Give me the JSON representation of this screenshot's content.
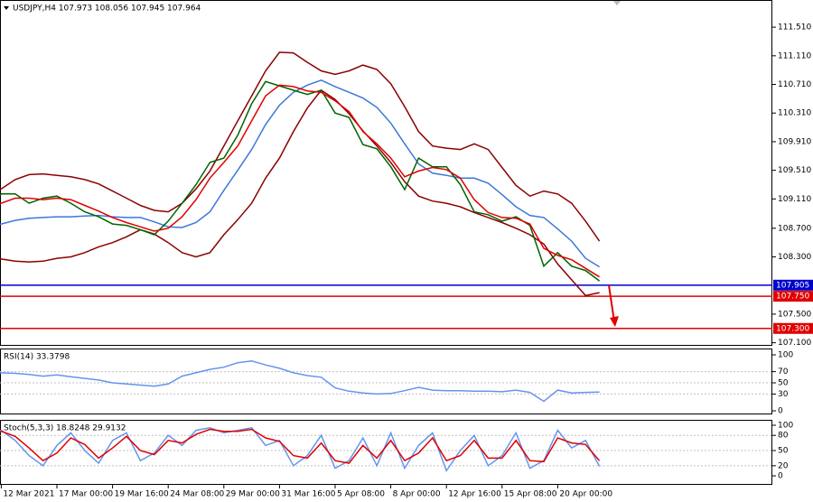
{
  "chart_data": [
    {
      "type": "line",
      "title": "USDJPY,H4  107.973 108.056 107.945 107.964",
      "categories": [
        null,
        "12 Mar 2021",
        null,
        null,
        null,
        "17 Mar 00:00",
        null,
        null,
        null,
        "19 Mar 16:00",
        null,
        null,
        null,
        "24 Mar 08:00",
        null,
        null,
        null,
        "29 Mar 00:00",
        null,
        null,
        null,
        "31 Mar 16:00",
        null,
        null,
        null,
        "5 Apr 08:00",
        null,
        null,
        null,
        "8 Apr 00:00",
        null,
        null,
        null,
        "12 Apr 16:00",
        null,
        null,
        null,
        "15 Apr 08:00",
        null,
        null,
        null,
        "20 Apr 00:00",
        null,
        null,
        null
      ],
      "series": [
        {
          "color": "#8b0000",
          "values": [
            109.16,
            109.25,
            109.38,
            109.45,
            109.46,
            109.44,
            109.42,
            109.38,
            109.32,
            109.22,
            109.12,
            109.02,
            108.95,
            108.93,
            109.05,
            109.25,
            109.5,
            109.85,
            110.2,
            110.55,
            110.9,
            111.16,
            111.15,
            111.02,
            110.9,
            110.85,
            110.9,
            110.98,
            110.92,
            110.72,
            110.4,
            110.05,
            109.85,
            109.82,
            109.8,
            109.88,
            109.8,
            109.55,
            109.3,
            109.15,
            109.22,
            109.18,
            109.05,
            108.8,
            108.52
          ]
        },
        {
          "color": "#8b0000",
          "values": [
            108.3,
            108.27,
            108.24,
            108.23,
            108.24,
            108.28,
            108.3,
            108.36,
            108.44,
            108.5,
            108.58,
            108.68,
            108.62,
            108.5,
            108.36,
            108.3,
            108.36,
            108.61,
            108.82,
            109.05,
            109.4,
            109.68,
            110.05,
            110.38,
            110.63,
            110.5,
            110.3,
            110.06,
            109.85,
            109.62,
            109.35,
            109.15,
            109.08,
            109.05,
            109.0,
            108.92,
            108.85,
            108.78,
            108.7,
            108.61,
            108.48,
            108.2,
            107.98,
            107.76,
            107.8
          ]
        },
        {
          "color": "#3c78d8",
          "values": [
            108.73,
            108.76,
            108.81,
            108.84,
            108.85,
            108.86,
            108.86,
            108.87,
            108.88,
            108.86,
            108.85,
            108.85,
            108.79,
            108.72,
            108.71,
            108.78,
            108.93,
            109.23,
            109.51,
            109.8,
            110.15,
            110.42,
            110.6,
            110.7,
            110.77,
            110.68,
            110.6,
            110.52,
            110.39,
            110.17,
            109.88,
            109.6,
            109.47,
            109.44,
            109.4,
            109.4,
            109.33,
            109.17,
            109.0,
            108.88,
            108.85,
            108.69,
            108.52,
            108.28,
            108.16
          ]
        },
        {
          "color": "#006400",
          "values": [
            108.99,
            109.18,
            109.18,
            109.05,
            109.12,
            109.15,
            109.05,
            108.93,
            108.86,
            108.76,
            108.74,
            108.68,
            108.61,
            108.8,
            109.05,
            109.31,
            109.62,
            109.68,
            110.0,
            110.44,
            110.75,
            110.69,
            110.63,
            110.57,
            110.63,
            110.31,
            110.25,
            109.87,
            109.81,
            109.56,
            109.24,
            109.68,
            109.56,
            109.56,
            109.31,
            108.93,
            108.89,
            108.8,
            108.86,
            108.74,
            108.17,
            108.36,
            108.17,
            108.11,
            107.964
          ]
        },
        {
          "color": "#e00000",
          "values": [
            108.95,
            109.05,
            109.12,
            109.12,
            109.1,
            109.12,
            109.1,
            109.02,
            108.94,
            108.85,
            108.78,
            108.72,
            108.66,
            108.7,
            108.86,
            109.1,
            109.4,
            109.62,
            109.85,
            110.2,
            110.55,
            110.7,
            110.68,
            110.62,
            110.6,
            110.48,
            110.33,
            110.05,
            109.88,
            109.68,
            109.42,
            109.5,
            109.55,
            109.52,
            109.4,
            109.1,
            108.92,
            108.85,
            108.84,
            108.76,
            108.42,
            108.32,
            108.26,
            108.14,
            108.02
          ]
        }
      ],
      "levels": [
        {
          "value": 107.905,
          "label": "107.905",
          "color": "#0000cd"
        },
        {
          "value": 107.75,
          "label": "107.750",
          "color": "#e00000"
        },
        {
          "value": 107.3,
          "label": "107.300",
          "color": "#e00000"
        }
      ],
      "ylim": [
        107.07,
        111.89
      ],
      "yticks": [
        {
          "value": 111.51,
          "label": "111.510"
        },
        {
          "value": 111.11,
          "label": "111.110"
        },
        {
          "value": 110.71,
          "label": "110.710"
        },
        {
          "value": 110.31,
          "label": "110.310"
        },
        {
          "value": 109.91,
          "label": "109.910"
        },
        {
          "value": 109.51,
          "label": "109.510"
        },
        {
          "value": 109.11,
          "label": "109.110"
        },
        {
          "value": 108.7,
          "label": "108.700"
        },
        {
          "value": 108.3,
          "label": "108.300"
        },
        {
          "value": 107.5,
          "label": "107.500"
        },
        {
          "value": 107.1,
          "label": "107.100"
        }
      ],
      "grid": false
    },
    {
      "type": "line",
      "title": "RSI(14) 33.3798",
      "series": [
        {
          "color": "#6495ed",
          "values": [
            66,
            68,
            67,
            65,
            62,
            64,
            61,
            58,
            55,
            50,
            48,
            46,
            44,
            48,
            62,
            68,
            74,
            78,
            86,
            89,
            82,
            76,
            68,
            63,
            60,
            41,
            35,
            32,
            30,
            31,
            36,
            42,
            37,
            36,
            36,
            35,
            35,
            34,
            37,
            33,
            17,
            37,
            32,
            33,
            33.38
          ]
        }
      ],
      "ylim": [
        -4.8,
        111.3
      ],
      "yticks": [
        100,
        70,
        50,
        30,
        0
      ],
      "grid": true
    },
    {
      "type": "line",
      "title": "Stoch(5,3,3) 18.8248 29.9132",
      "series": [
        {
          "color": "#6495ed",
          "values": [
            85,
            90,
            70,
            40,
            20,
            60,
            85,
            50,
            25,
            70,
            85,
            30,
            45,
            80,
            60,
            90,
            95,
            85,
            90,
            95,
            60,
            70,
            20,
            40,
            80,
            15,
            30,
            75,
            20,
            85,
            15,
            60,
            85,
            10,
            50,
            80,
            20,
            40,
            85,
            15,
            30,
            90,
            55,
            70,
            18.82
          ]
        },
        {
          "color": "#e00000",
          "values": [
            80,
            88,
            78,
            55,
            30,
            45,
            75,
            62,
            35,
            55,
            78,
            50,
            42,
            70,
            65,
            82,
            92,
            88,
            88,
            92,
            75,
            68,
            40,
            35,
            65,
            30,
            25,
            60,
            35,
            70,
            30,
            45,
            75,
            30,
            40,
            70,
            35,
            35,
            70,
            30,
            28,
            75,
            65,
            62,
            29.91
          ]
        }
      ],
      "ylim": [
        -16,
        110.7
      ],
      "yticks": [
        100,
        80,
        50,
        20,
        0
      ],
      "grid": true
    }
  ]
}
